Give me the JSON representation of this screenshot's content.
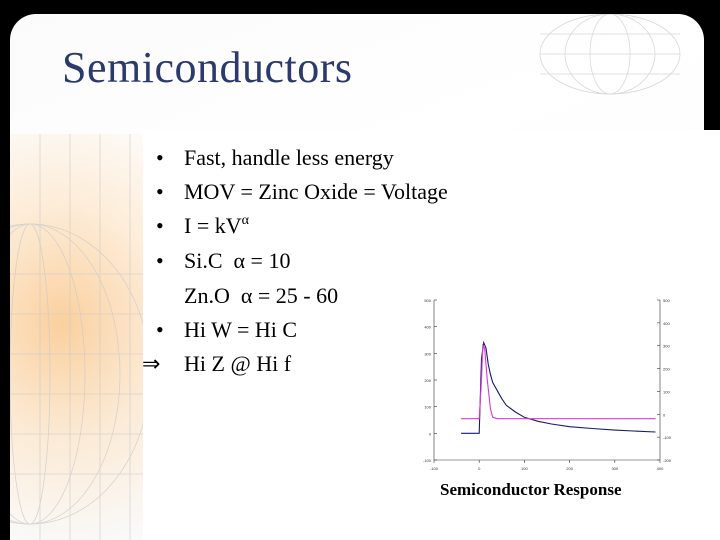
{
  "slide": {
    "title": "Semiconductors",
    "bullets": [
      {
        "marker": "•",
        "text": "Fast, handle less energy"
      },
      {
        "marker": "•",
        "text": "MOV = Zinc Oxide = Voltage"
      },
      {
        "marker": "•",
        "text_parts": [
          "I = kV",
          "α"
        ]
      },
      {
        "marker": "•",
        "text": "Si.C  α = 10"
      },
      {
        "marker": "",
        "text": "Zn.O  α = 25 - 60"
      },
      {
        "marker": "•",
        "text": "Hi W = Hi C"
      },
      {
        "marker": "⇒",
        "text": "Hi Z @ Hi f"
      }
    ],
    "colors": {
      "title": "#2b3a6b",
      "trace_blue": "#1a1a6e",
      "trace_magenta": "#d63ad6"
    }
  },
  "chart_data": {
    "type": "line",
    "caption": "Semiconductor Response",
    "xlim": [
      -100,
      400
    ],
    "ylim": [
      -100,
      500
    ],
    "y2lim": [
      -200,
      500
    ],
    "series": [
      {
        "color": "#1a1a6e",
        "x": [
          -40,
          -30,
          -20,
          -10,
          0,
          5,
          10,
          15,
          20,
          25,
          30,
          40,
          50,
          60,
          80,
          100,
          130,
          160,
          200,
          250,
          300,
          350,
          390
        ],
        "y": [
          0,
          0,
          0,
          0,
          0,
          280,
          340,
          320,
          260,
          220,
          190,
          160,
          130,
          105,
          80,
          60,
          45,
          35,
          25,
          18,
          12,
          8,
          5
        ]
      },
      {
        "color": "#d63ad6",
        "x": [
          -40,
          -20,
          0,
          5,
          8,
          12,
          18,
          25,
          30,
          40,
          60,
          100,
          150,
          200,
          250,
          300,
          350,
          390
        ],
        "y": [
          55,
          55,
          55,
          200,
          330,
          320,
          200,
          90,
          60,
          55,
          55,
          55,
          55,
          55,
          55,
          55,
          55,
          55
        ]
      }
    ],
    "yticks": [
      -100,
      0,
      100,
      200,
      300,
      400,
      500
    ],
    "y2ticks": [
      -200,
      -100,
      0,
      100,
      200,
      300,
      400,
      500
    ],
    "xticks": [
      -100,
      0,
      100,
      200,
      300,
      400
    ]
  }
}
